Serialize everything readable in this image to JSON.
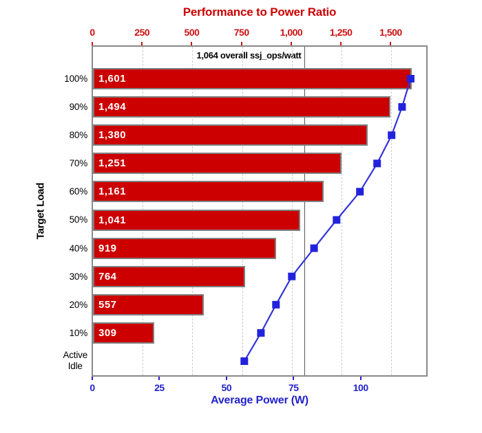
{
  "title": "Performance to Power Ratio",
  "y_axis_title": "Target Load",
  "x_axis_title": "Average Power (W)",
  "annotation_label": "1,064 overall ssj_ops/watt",
  "chart_data": {
    "type": "bar",
    "subtype": "horizontal-bar-with-line-overlay",
    "title": "Performance to Power Ratio",
    "ylabel": "Target Load",
    "xlabel_bottom": "Average Power (W)",
    "categories": [
      "100%",
      "90%",
      "80%",
      "70%",
      "60%",
      "50%",
      "40%",
      "30%",
      "20%",
      "10%",
      "Active\nIdle"
    ],
    "series": [
      {
        "name": "Performance to Power Ratio",
        "type": "bar",
        "axis": "top",
        "values": [
          1601,
          1494,
          1380,
          1251,
          1161,
          1041,
          919,
          764,
          557,
          309,
          null
        ],
        "labels": [
          "1,601",
          "1,494",
          "1,380",
          "1,251",
          "1,161",
          "1,041",
          "919",
          "764",
          "557",
          "309",
          ""
        ]
      },
      {
        "name": "Average Power (W)",
        "type": "line",
        "axis": "bottom",
        "values": [
          118.4,
          115.2,
          111.3,
          105.9,
          99.5,
          90.8,
          82.4,
          74.1,
          68.2,
          62.6,
          56.4
        ]
      }
    ],
    "top_axis": {
      "title": "Performance to Power Ratio",
      "ticks": [
        0,
        250,
        500,
        750,
        1000,
        1250,
        1500
      ],
      "tick_labels": [
        "0",
        "250",
        "500",
        "750",
        "1,000",
        "1,250",
        "1,500"
      ],
      "min": 0,
      "max": 1675
    },
    "bottom_axis": {
      "title": "Average Power (W)",
      "ticks": [
        0,
        25,
        50,
        75,
        100
      ],
      "tick_labels": [
        "0",
        "25",
        "50",
        "75",
        "100"
      ],
      "min": 0,
      "max": 124.2
    },
    "reference_line": {
      "value": 1064,
      "label": "1,064 overall ssj_ops/watt"
    },
    "grid": "vertical-dashed-at-top-axis-ticks",
    "legend": "none",
    "colors": {
      "bar_fill": "#cc0000",
      "bar_border": "#808080",
      "bar_label": "#ffffff",
      "line": "#3333dd",
      "marker": "#2222dd",
      "title_red": "#cc0000",
      "tick_red": "#cc1111",
      "blue_text": "#2222cc",
      "grid": "#cccccc",
      "reference": "#555555",
      "plot_border": "#888888",
      "black_text": "#000000"
    }
  }
}
